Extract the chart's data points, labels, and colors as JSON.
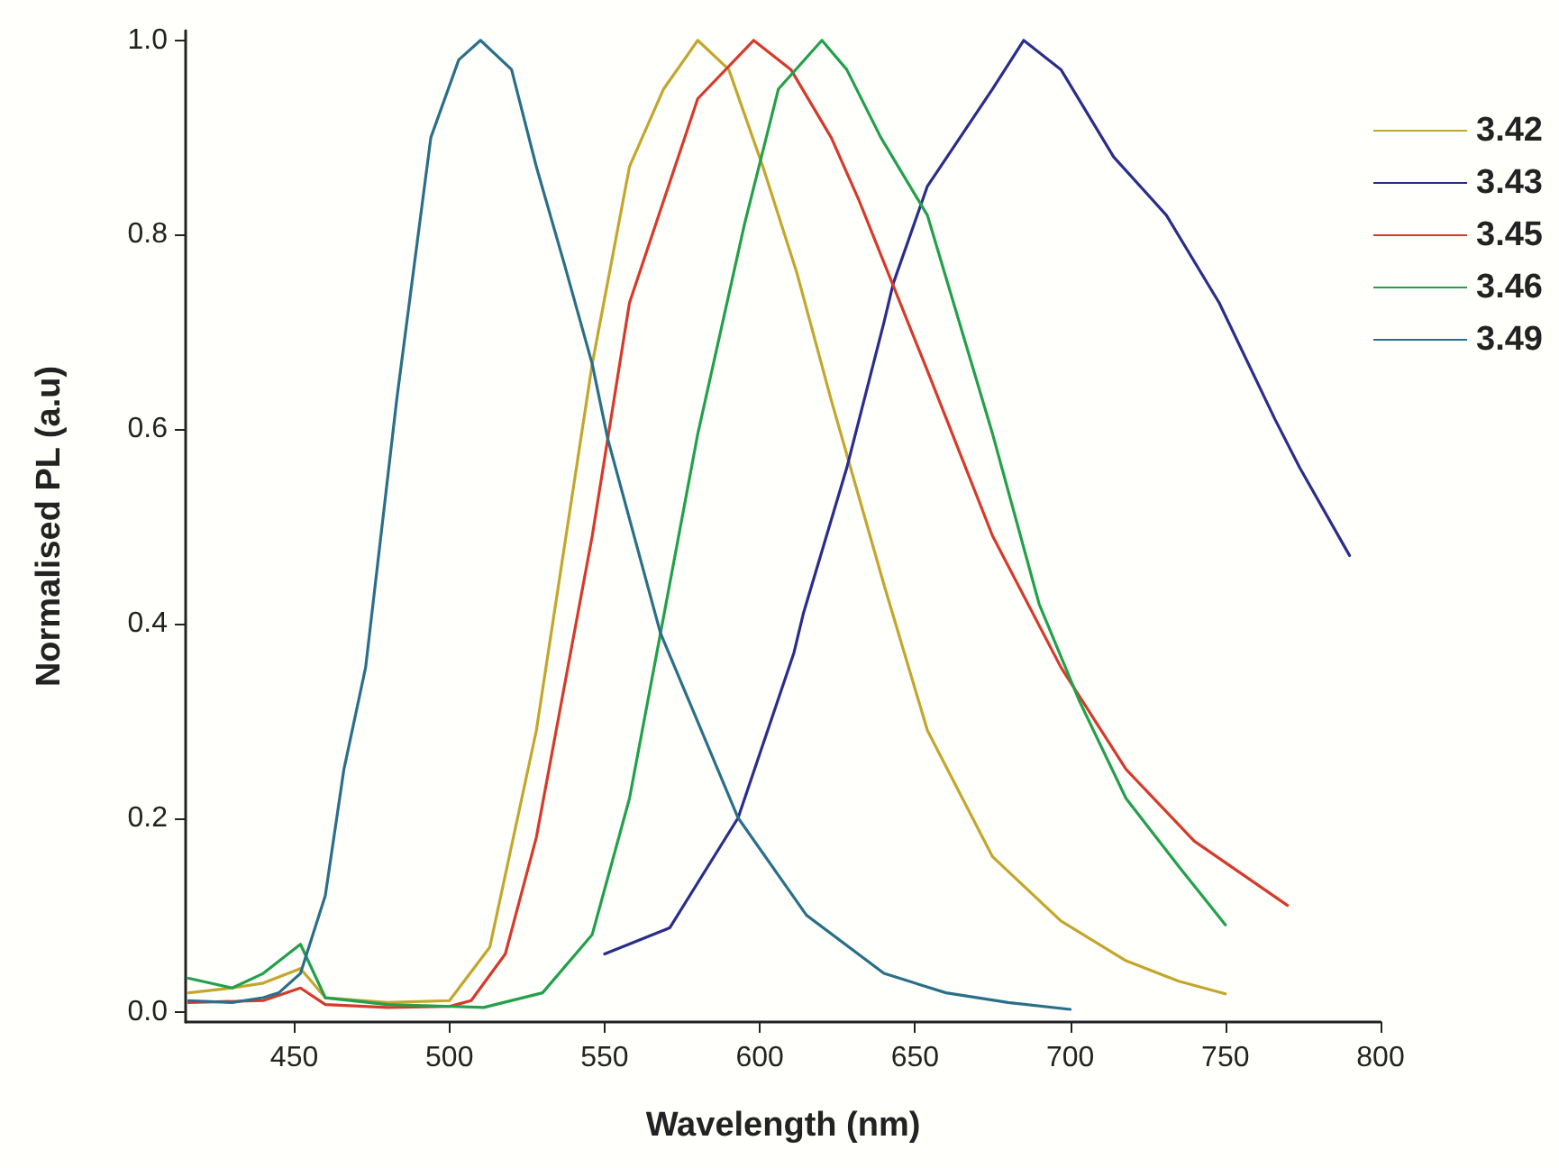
{
  "chart_data": {
    "type": "line",
    "xlabel": "Wavelength (nm)",
    "ylabel": "Normalised PL (a.u)",
    "xlim": [
      415,
      800
    ],
    "xticks": [
      450,
      500,
      550,
      600,
      650,
      700,
      750,
      800
    ],
    "ylim": [
      -0.01,
      1.01
    ],
    "yticks": [
      {
        "value": 0,
        "label": "0.0"
      },
      {
        "value": 0.2,
        "label": "0.2"
      },
      {
        "value": 0.4,
        "label": "0.4"
      },
      {
        "value": 0.6,
        "label": "0.6"
      },
      {
        "value": 0.8,
        "label": "0.8"
      },
      {
        "value": 1,
        "label": "1.0"
      }
    ],
    "grid": false,
    "legend": "top right",
    "marker": "none",
    "line_style": "solid",
    "series": [
      {
        "name": "3.42",
        "color": "#c4a62c",
        "x": [
          416,
          430,
          440,
          452,
          460,
          480,
          500,
          513,
          528,
          546,
          558,
          569,
          580,
          590,
          601,
          612,
          623,
          640,
          654,
          675,
          697,
          718,
          735,
          750
        ],
        "values": [
          0.02,
          0.025,
          0.03,
          0.045,
          0.015,
          0.01,
          0.012,
          0.067,
          0.29,
          0.667,
          0.87,
          0.95,
          1.0,
          0.97,
          0.87,
          0.76,
          0.63,
          0.44,
          0.29,
          0.16,
          0.094,
          0.053,
          0.032,
          0.019
        ]
      },
      {
        "name": "3.43",
        "color": "#2a2d8c",
        "x": [
          550,
          571,
          593,
          611,
          614,
          628,
          640,
          643,
          654,
          675,
          685,
          697,
          714,
          731,
          748,
          766,
          774,
          790
        ],
        "values": [
          0.06,
          0.087,
          0.2,
          0.37,
          0.41,
          0.56,
          0.71,
          0.75,
          0.85,
          0.95,
          1.0,
          0.97,
          0.88,
          0.82,
          0.73,
          0.61,
          0.56,
          0.47
        ]
      },
      {
        "name": "3.45",
        "color": "#d63a2a",
        "x": [
          416,
          440,
          452,
          460,
          480,
          500,
          507,
          518,
          528,
          546,
          558,
          580,
          598,
          610,
          623,
          632,
          654,
          675,
          697,
          718,
          740,
          770
        ],
        "values": [
          0.01,
          0.012,
          0.025,
          0.008,
          0.005,
          0.006,
          0.012,
          0.06,
          0.18,
          0.49,
          0.73,
          0.94,
          1.0,
          0.97,
          0.9,
          0.835,
          0.66,
          0.49,
          0.355,
          0.25,
          0.176,
          0.11
        ]
      },
      {
        "name": "3.46",
        "color": "#22a04a",
        "x": [
          416,
          430,
          440,
          452,
          460,
          480,
          511,
          530,
          546,
          558,
          568,
          580,
          595,
          606,
          620,
          628,
          639,
          654,
          675,
          690,
          703,
          718,
          735,
          750
        ],
        "values": [
          0.035,
          0.025,
          0.04,
          0.07,
          0.015,
          0.008,
          0.005,
          0.02,
          0.08,
          0.22,
          0.39,
          0.595,
          0.81,
          0.95,
          1.0,
          0.97,
          0.9,
          0.82,
          0.595,
          0.42,
          0.32,
          0.22,
          0.15,
          0.09
        ]
      },
      {
        "name": "3.49",
        "color": "#2a6f8a",
        "x": [
          416,
          430,
          440,
          445,
          452,
          460,
          466,
          473,
          483,
          494,
          503,
          510,
          520,
          528,
          537,
          546,
          551,
          568,
          593,
          615,
          640,
          660,
          680,
          700
        ],
        "values": [
          0.012,
          0.01,
          0.015,
          0.02,
          0.04,
          0.12,
          0.25,
          0.355,
          0.63,
          0.9,
          0.98,
          1.0,
          0.97,
          0.87,
          0.77,
          0.667,
          0.59,
          0.39,
          0.2,
          0.1,
          0.04,
          0.02,
          0.01,
          0.003
        ]
      }
    ]
  }
}
